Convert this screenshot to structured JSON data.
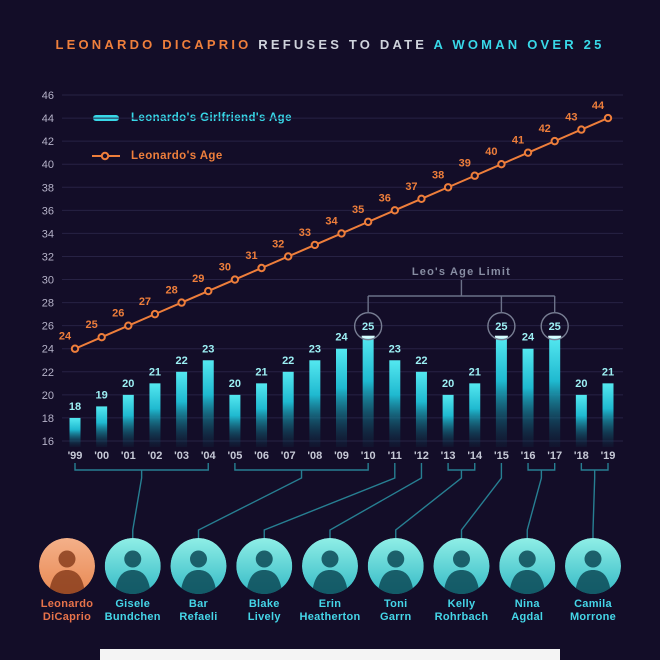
{
  "title": {
    "part1": "LEONARDO DICAPRIO",
    "part2": "REFUSES TO DATE",
    "part3": "A WOMAN OVER 25"
  },
  "legend": {
    "girlfriend_label": "Leonardo's Girlfriend's Age",
    "leo_label": "Leonardo's Age"
  },
  "annotation": {
    "label": "Leo's Age Limit",
    "circled_value": 25,
    "circled_years": [
      "'10",
      "'15",
      "'17"
    ],
    "circled_indices": [
      11,
      16,
      18
    ]
  },
  "chart_data": {
    "type": "bar+line",
    "categories": [
      "'99",
      "'00",
      "'01",
      "'02",
      "'03",
      "'04",
      "'05",
      "'06",
      "'07",
      "'08",
      "'09",
      "'10",
      "'11",
      "'12",
      "'13",
      "'14",
      "'15",
      "'16",
      "'17",
      "'18",
      "'19"
    ],
    "series": [
      {
        "name": "Leonardo's Girlfriend's Age",
        "type": "bar",
        "values": [
          18,
          19,
          20,
          21,
          22,
          23,
          20,
          21,
          22,
          23,
          24,
          25,
          23,
          22,
          20,
          21,
          25,
          24,
          25,
          20,
          21
        ]
      },
      {
        "name": "Leonardo's Age",
        "type": "line",
        "values": [
          24,
          25,
          26,
          27,
          28,
          29,
          30,
          31,
          32,
          33,
          34,
          35,
          36,
          37,
          38,
          39,
          40,
          41,
          42,
          43,
          44
        ]
      }
    ],
    "ylim": [
      16,
      46
    ],
    "ytick_step": 2,
    "grid": true,
    "legend_position": "top-left"
  },
  "people": [
    {
      "name_lines": [
        "Leonardo",
        "DiCaprio"
      ],
      "role": "leo"
    },
    {
      "name_lines": [
        "Gisele",
        "Bundchen"
      ],
      "role": "girlfriend"
    },
    {
      "name_lines": [
        "Bar",
        "Refaeli"
      ],
      "role": "girlfriend"
    },
    {
      "name_lines": [
        "Blake",
        "Lively"
      ],
      "role": "girlfriend"
    },
    {
      "name_lines": [
        "Erin",
        "Heatherton"
      ],
      "role": "girlfriend"
    },
    {
      "name_lines": [
        "Toni",
        "Garrn"
      ],
      "role": "girlfriend"
    },
    {
      "name_lines": [
        "Kelly",
        "Rohrbach"
      ],
      "role": "girlfriend"
    },
    {
      "name_lines": [
        "Nina",
        "Agdal"
      ],
      "role": "girlfriend"
    },
    {
      "name_lines": [
        "Camila",
        "Morrone"
      ],
      "role": "girlfriend"
    }
  ],
  "timeline_groups": [
    {
      "from_index": 0,
      "to_index": 5,
      "person_index": 1,
      "years": "'99–'04"
    },
    {
      "from_index": 6,
      "to_index": 11,
      "person_index": 2,
      "years": "'05–'10"
    },
    {
      "from_index": 12,
      "to_index": 12,
      "person_index": 3,
      "years": "'11"
    },
    {
      "from_index": 13,
      "to_index": 13,
      "person_index": 4,
      "years": "'12"
    },
    {
      "from_index": 14,
      "to_index": 15,
      "person_index": 5,
      "years": "'13–'14"
    },
    {
      "from_index": 16,
      "to_index": 16,
      "person_index": 6,
      "years": "'15"
    },
    {
      "from_index": 17,
      "to_index": 18,
      "person_index": 7,
      "years": "'16–'17"
    },
    {
      "from_index": 19,
      "to_index": 20,
      "person_index": 8,
      "years": "'18–'19"
    }
  ],
  "colors": {
    "background": "#130d28",
    "bar_top": "#54e8f0",
    "bar_mid": "#1fb9d0",
    "bar_bottom": "#0a3d52",
    "orange": "#ee7e3b",
    "cyan_text": "#38d8e8",
    "value_label": "#9df0f4",
    "axis_label": "#b5b2c8",
    "year_label": "#c6c9d6",
    "grid": "#272244",
    "bracket_gray": "#6b7188",
    "connector_teal": "#277f92",
    "leo_name": "#e8734a",
    "girlfriend_name": "#45d6e8"
  }
}
